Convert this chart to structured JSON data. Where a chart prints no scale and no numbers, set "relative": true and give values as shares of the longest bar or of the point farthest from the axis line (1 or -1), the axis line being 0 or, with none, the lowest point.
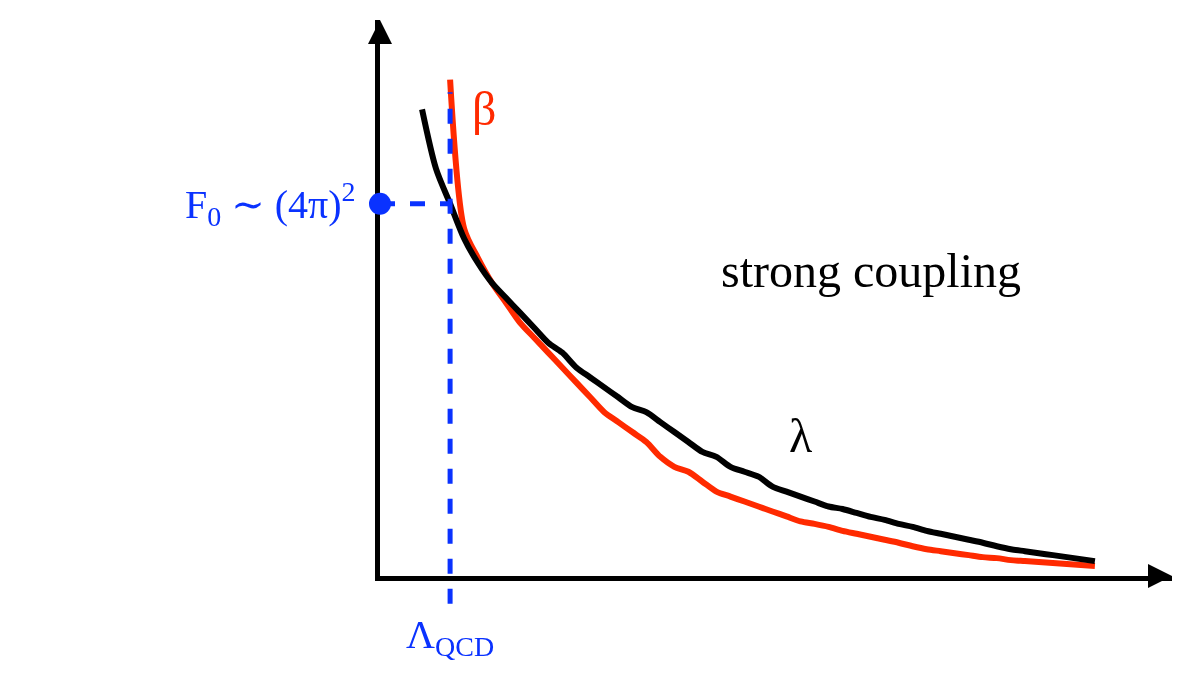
{
  "chart_data": {
    "type": "line",
    "relative": true,
    "legend": false,
    "grid": false,
    "marker": "none",
    "line_style": "solid",
    "categories": [
      null,
      null,
      null,
      null,
      null,
      null,
      null,
      null,
      null,
      null,
      null,
      null,
      null,
      null,
      null,
      null,
      null,
      null,
      null,
      null,
      null,
      null,
      null,
      null,
      null,
      null,
      null,
      null,
      null,
      null,
      null,
      null,
      null,
      null,
      null,
      null,
      null,
      null,
      null,
      null,
      null,
      null,
      null,
      null,
      null,
      null,
      null,
      null,
      null,
      null,
      null,
      null,
      null,
      null,
      null,
      null,
      null
    ],
    "series": [
      {
        "name": "β",
        "color": "#ff2a00",
        "values": [
          null,
          null,
          null,
          null,
          null,
          1.0,
          0.7,
          0.64,
          0.59,
          0.55,
          0.51,
          0.48,
          0.45,
          0.42,
          0.39,
          0.36,
          0.33,
          0.31,
          0.29,
          0.27,
          0.24,
          0.22,
          0.21,
          0.19,
          0.17,
          0.16,
          0.15,
          0.14,
          0.13,
          0.12,
          0.11,
          0.105,
          0.099,
          0.091,
          0.085,
          0.079,
          0.073,
          0.067,
          0.06,
          0.054,
          0.05,
          0.046,
          0.042,
          0.038,
          0.036,
          0.032,
          0.03,
          0.028,
          0.026,
          0.024,
          0.022,
          0.02,
          null,
          null,
          null,
          null,
          null
        ]
      },
      {
        "name": "λ",
        "color": "#000000",
        "values": [
          null,
          null,
          null,
          0.94,
          0.82,
          0.75,
          0.68,
          0.63,
          0.59,
          0.56,
          0.53,
          0.5,
          0.47,
          0.45,
          0.42,
          0.4,
          0.38,
          0.36,
          0.34,
          0.33,
          0.31,
          0.29,
          0.27,
          0.25,
          0.24,
          0.22,
          0.21,
          0.2,
          0.18,
          0.17,
          0.16,
          0.15,
          0.14,
          0.135,
          0.127,
          0.119,
          0.113,
          0.105,
          0.099,
          0.091,
          0.085,
          0.079,
          0.073,
          0.067,
          0.06,
          0.054,
          0.05,
          0.046,
          0.042,
          0.038,
          0.034,
          0.03,
          null,
          null,
          null,
          null,
          null
        ]
      }
    ],
    "ref_lines": [
      {
        "axis": "y",
        "value": 0.75,
        "label": "F$_{0}$ ∼ (4π)$^{2}$",
        "color": "#0a32ff",
        "line_style": "dashed"
      }
    ],
    "annotations": [
      "strong coupling",
      "Λ$_{QCD}$"
    ]
  }
}
